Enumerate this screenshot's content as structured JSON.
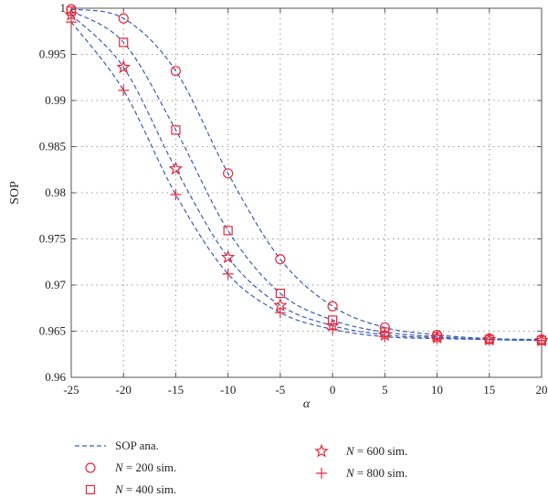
{
  "chart_data": {
    "type": "line",
    "xlabel": "α",
    "ylabel": "SOP",
    "xlim": [
      -25,
      20
    ],
    "ylim": [
      0.96,
      1.0
    ],
    "xticks": [
      -25,
      -20,
      -15,
      -10,
      -5,
      0,
      5,
      10,
      15,
      20
    ],
    "yticks": [
      0.96,
      0.965,
      0.97,
      0.975,
      0.98,
      0.985,
      0.99,
      0.995,
      1.0
    ],
    "ytick_labels": [
      "0.96",
      "0.965",
      "0.97",
      "0.975",
      "0.98",
      "0.985",
      "0.99",
      "0.995",
      "1"
    ],
    "grid": true,
    "legend_position": "below",
    "colors": {
      "analysis": "#3a5cb8",
      "simulation": "#e8283c",
      "axis": "#555555"
    },
    "x": [
      -25,
      -20,
      -15,
      -10,
      -5,
      0,
      5,
      10,
      15,
      20
    ],
    "series": [
      {
        "N": "200",
        "marker": "circle",
        "values": [
          0.9999,
          0.9989,
          0.9932,
          0.9821,
          0.9728,
          0.9677,
          0.9654,
          0.9646,
          0.9642,
          0.9641
        ]
      },
      {
        "N": "400",
        "marker": "square",
        "values": [
          0.9997,
          0.9963,
          0.9868,
          0.9759,
          0.9691,
          0.9662,
          0.9649,
          0.9644,
          0.9641,
          0.964
        ]
      },
      {
        "N": "600",
        "marker": "star",
        "values": [
          0.9993,
          0.9936,
          0.9826,
          0.973,
          0.9678,
          0.9656,
          0.9646,
          0.9643,
          0.9641,
          0.964
        ]
      },
      {
        "N": "800",
        "marker": "plus",
        "values": [
          0.9985,
          0.9911,
          0.9798,
          0.9712,
          0.967,
          0.9652,
          0.9644,
          0.9642,
          0.9641,
          0.964
        ]
      }
    ],
    "legend": [
      {
        "marker": "line",
        "prefix": "",
        "suffix": "SOP ana."
      },
      {
        "marker": "circle",
        "prefix": "N",
        "suffix": " = 200 sim."
      },
      {
        "marker": "square",
        "prefix": "N",
        "suffix": " = 400 sim."
      },
      {
        "marker": "star",
        "prefix": "N",
        "suffix": " = 600 sim."
      },
      {
        "marker": "plus",
        "prefix": "N",
        "suffix": " = 800 sim."
      }
    ]
  }
}
